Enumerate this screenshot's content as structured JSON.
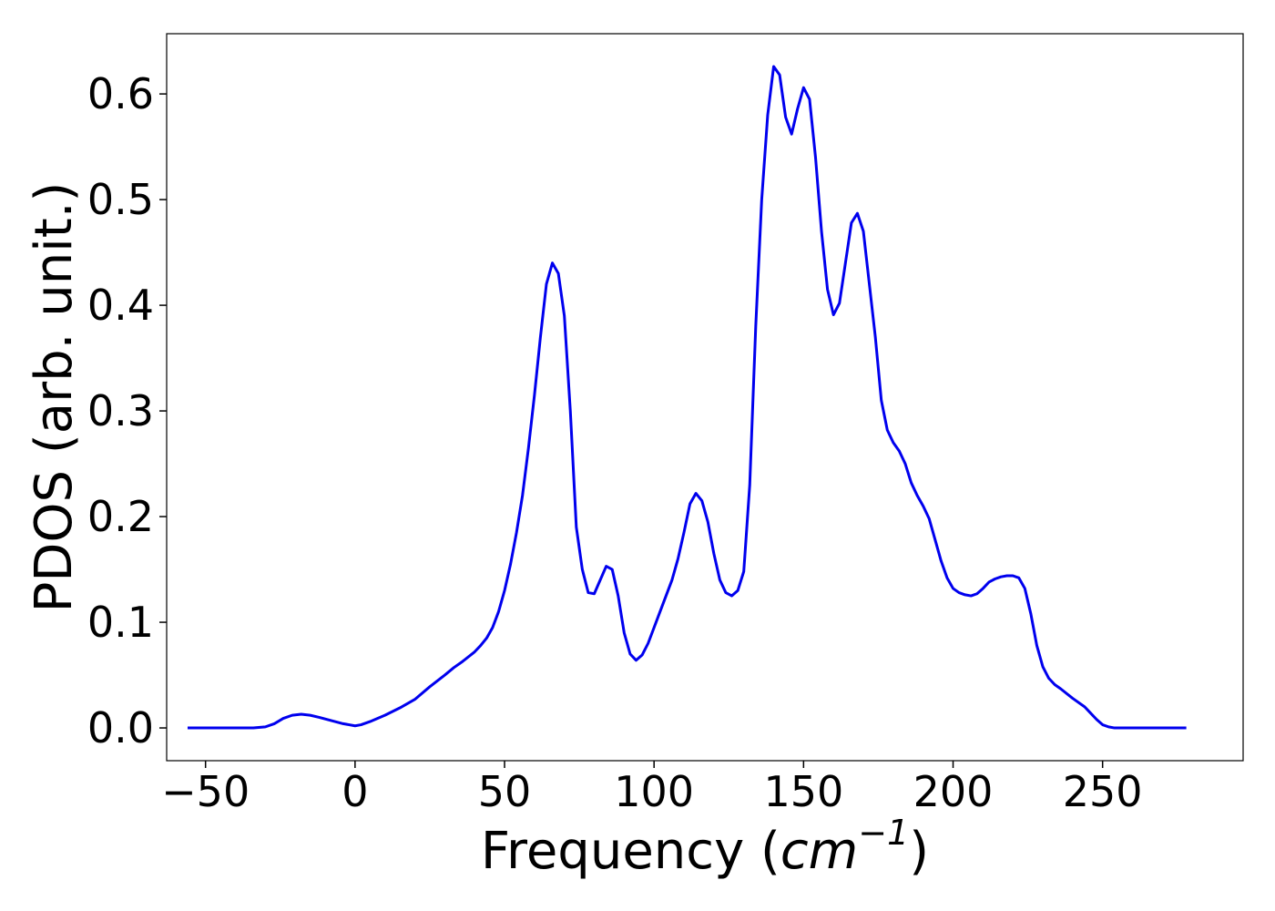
{
  "chart_data": {
    "type": "line",
    "title": "",
    "xlabel_text": "Frequency (",
    "xlabel_unit": "cm",
    "xlabel_exponent": "−1",
    "xlabel_close": ")",
    "ylabel": "PDOS (arb. unit.)",
    "xlim": [
      -63,
      297
    ],
    "ylim": [
      -0.031,
      0.657
    ],
    "x_ticks": [
      {
        "value": -50,
        "label": "−50"
      },
      {
        "value": 0,
        "label": "0"
      },
      {
        "value": 50,
        "label": "50"
      },
      {
        "value": 100,
        "label": "100"
      },
      {
        "value": 150,
        "label": "150"
      },
      {
        "value": 200,
        "label": "200"
      },
      {
        "value": 250,
        "label": "250"
      }
    ],
    "y_ticks": [
      {
        "value": 0.0,
        "label": "0.0"
      },
      {
        "value": 0.1,
        "label": "0.1"
      },
      {
        "value": 0.2,
        "label": "0.2"
      },
      {
        "value": 0.3,
        "label": "0.3"
      },
      {
        "value": 0.4,
        "label": "0.4"
      },
      {
        "value": 0.5,
        "label": "0.5"
      },
      {
        "value": 0.6,
        "label": "0.6"
      }
    ],
    "grid": false,
    "legend": "none",
    "series": [
      {
        "color": "#0000ee",
        "x": [
          -56,
          -50,
          -40,
          -34,
          -30,
          -27,
          -24,
          -21,
          -18,
          -15,
          -12,
          -8,
          -4,
          0,
          2,
          5,
          10,
          15,
          20,
          25,
          30,
          33,
          36,
          40,
          42,
          44,
          46,
          48,
          50,
          52,
          54,
          56,
          58,
          60,
          62,
          64,
          66,
          68,
          70,
          72,
          74,
          76,
          78,
          80,
          82,
          84,
          86,
          88,
          90,
          92,
          94,
          96,
          98,
          100,
          102,
          104,
          106,
          108,
          110,
          112,
          114,
          116,
          118,
          120,
          122,
          124,
          126,
          128,
          130,
          132,
          134,
          136,
          138,
          140,
          142,
          144,
          146,
          148,
          150,
          152,
          154,
          156,
          158,
          160,
          162,
          164,
          166,
          168,
          170,
          172,
          174,
          176,
          178,
          180,
          182,
          184,
          186,
          188,
          190,
          192,
          194,
          196,
          198,
          200,
          202,
          204,
          206,
          208,
          210,
          212,
          214,
          216,
          218,
          220,
          222,
          224,
          226,
          228,
          230,
          232,
          234,
          236,
          240,
          244,
          246,
          248,
          250,
          252,
          254,
          256,
          260,
          270,
          278
        ],
        "y": [
          0,
          0,
          0,
          0,
          0.001,
          0.004,
          0.009,
          0.012,
          0.013,
          0.012,
          0.01,
          0.007,
          0.004,
          0.002,
          0.003,
          0.006,
          0.012,
          0.019,
          0.027,
          0.039,
          0.05,
          0.057,
          0.063,
          0.072,
          0.078,
          0.085,
          0.095,
          0.11,
          0.13,
          0.155,
          0.185,
          0.22,
          0.265,
          0.315,
          0.37,
          0.42,
          0.44,
          0.43,
          0.39,
          0.3,
          0.19,
          0.15,
          0.128,
          0.127,
          0.14,
          0.153,
          0.15,
          0.125,
          0.09,
          0.07,
          0.064,
          0.069,
          0.08,
          0.095,
          0.11,
          0.125,
          0.14,
          0.16,
          0.185,
          0.212,
          0.222,
          0.215,
          0.195,
          0.165,
          0.14,
          0.128,
          0.125,
          0.13,
          0.148,
          0.23,
          0.38,
          0.5,
          0.58,
          0.626,
          0.618,
          0.578,
          0.562,
          0.586,
          0.606,
          0.595,
          0.54,
          0.47,
          0.415,
          0.391,
          0.402,
          0.44,
          0.478,
          0.487,
          0.47,
          0.42,
          0.37,
          0.31,
          0.282,
          0.27,
          0.262,
          0.25,
          0.232,
          0.22,
          0.21,
          0.198,
          0.178,
          0.158,
          0.142,
          0.132,
          0.128,
          0.126,
          0.125,
          0.127,
          0.132,
          0.138,
          0.141,
          0.143,
          0.144,
          0.144,
          0.142,
          0.132,
          0.108,
          0.078,
          0.058,
          0.047,
          0.041,
          0.037,
          0.028,
          0.02,
          0.014,
          0.008,
          0.003,
          0.001,
          0,
          0,
          0,
          0,
          0
        ]
      }
    ]
  }
}
